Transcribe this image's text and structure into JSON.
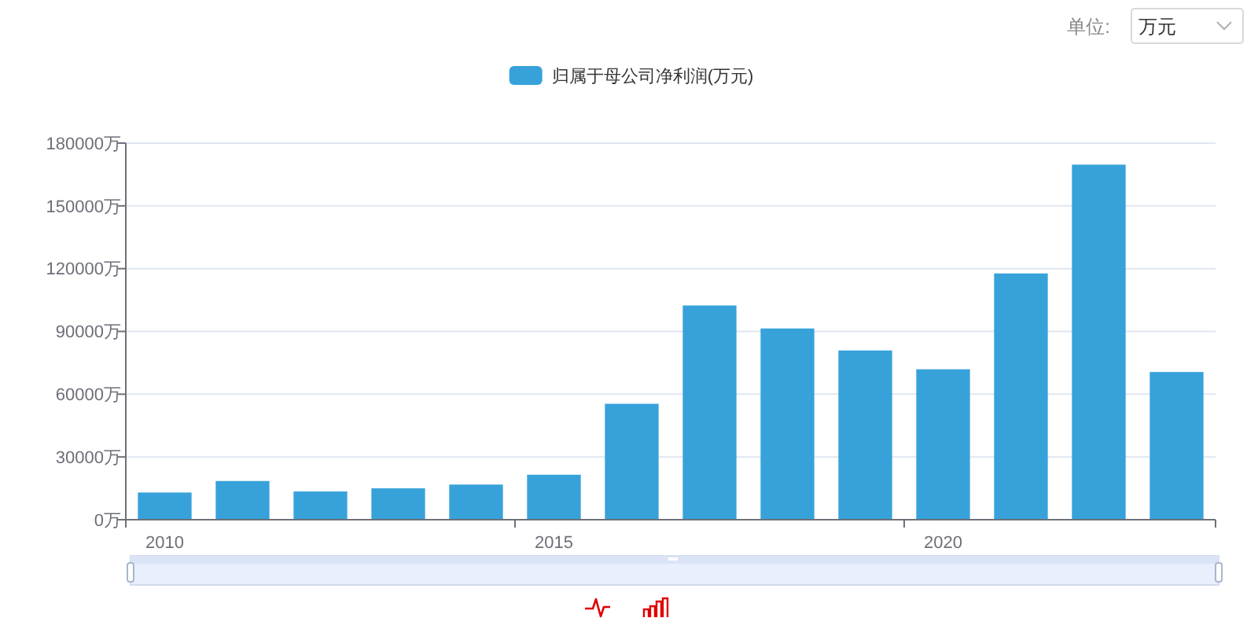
{
  "chart_data": {
    "type": "bar",
    "categories": [
      "2010",
      null,
      null,
      null,
      null,
      "2015",
      null,
      null,
      null,
      null,
      "2020",
      null,
      null,
      null
    ],
    "series": [
      {
        "name": "归属于母公司净利润(万元)",
        "color": "#37a2da",
        "values": [
          13000,
          18500,
          13500,
          15000,
          16800,
          21500,
          55400,
          102400,
          91400,
          80900,
          71900,
          117700,
          169700,
          70600
        ]
      }
    ],
    "ylim": [
      0,
      180000
    ],
    "yticks": [
      {
        "value": 0,
        "label": "0万"
      },
      {
        "value": 30000,
        "label": "30000万"
      },
      {
        "value": 60000,
        "label": "60000万"
      },
      {
        "value": 90000,
        "label": "90000万"
      },
      {
        "value": 120000,
        "label": "120000万"
      },
      {
        "value": 150000,
        "label": "150000万"
      },
      {
        "value": 180000,
        "label": "180000万"
      }
    ],
    "grid": "y",
    "legend": "top",
    "annotations": [
      "单位:",
      "万元"
    ]
  }
}
